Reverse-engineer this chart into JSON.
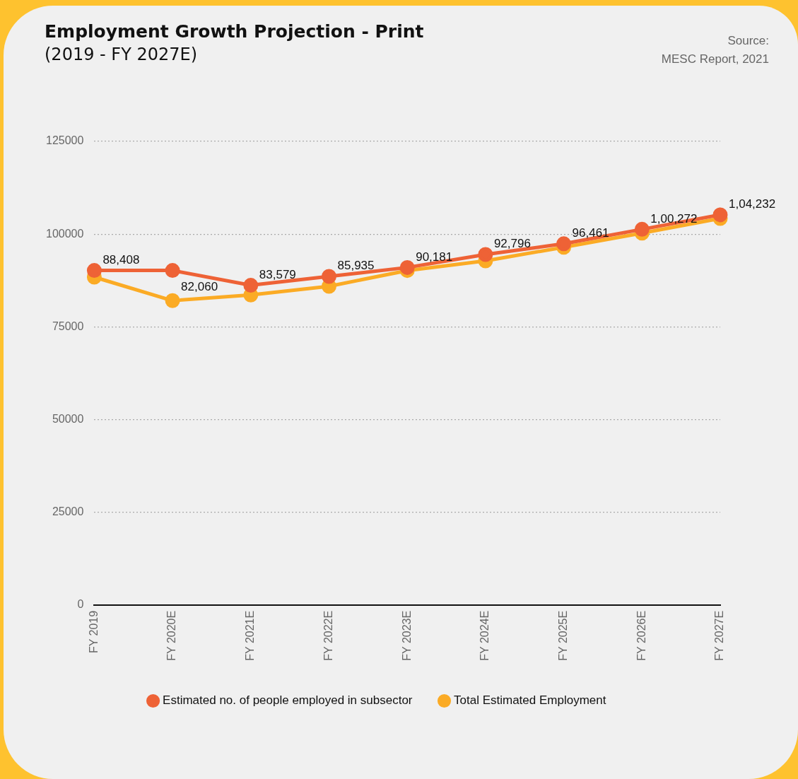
{
  "chart_data": {
    "type": "line",
    "title": "Employment Growth Projection - Print",
    "subtitle": "(2019 - FY 2027E)",
    "annotations": [
      "Source:",
      "MESC Report, 2021"
    ],
    "categories": [
      "FY 2019",
      "FY 2020E",
      "FY 2021E",
      "FY 2022E",
      "FY 2023E",
      "FY 2024E",
      "FY 2025E",
      "FY 2026E",
      "FY 2027E"
    ],
    "series": [
      {
        "name": "Estimated no. of people employed in subsector",
        "color": "#ee6236",
        "values": [
          90200,
          90200,
          86200,
          88600,
          91000,
          94500,
          97400,
          101300,
          105200
        ]
      },
      {
        "name": "Total Estimated Employment",
        "color": "#fbab25",
        "values": [
          88408,
          82060,
          83579,
          85935,
          90181,
          92796,
          96461,
          100272,
          104232
        ],
        "value_labels": [
          "88,408",
          "82,060",
          "83,579",
          "85,935",
          "90,181",
          "92,796",
          "96,461",
          "1,00,272",
          "1,04,232"
        ]
      }
    ],
    "ylim": [
      0,
      125000
    ],
    "yticks": [
      0,
      25000,
      50000,
      75000,
      100000,
      125000
    ],
    "grid": "y",
    "legend": "bottom",
    "marker": "circle",
    "line_style": "solid"
  }
}
